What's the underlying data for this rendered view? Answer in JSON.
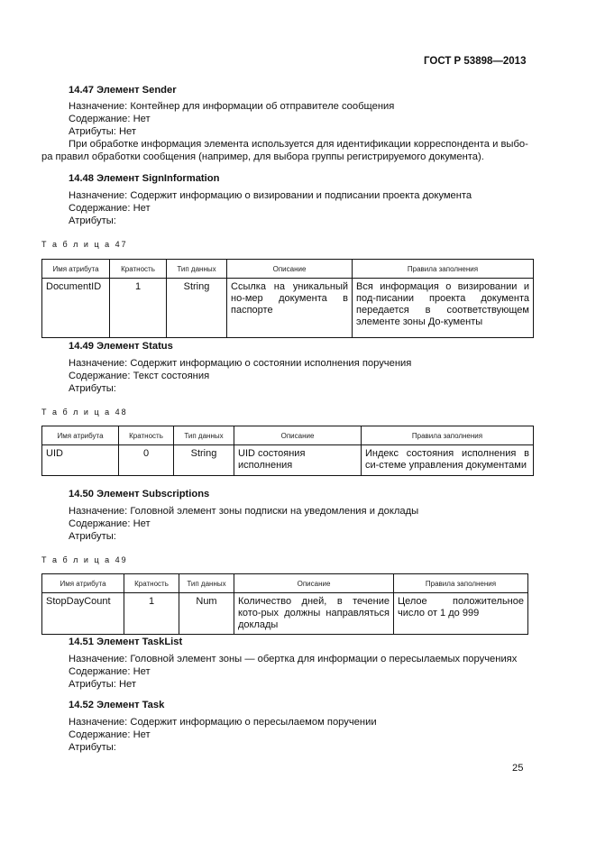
{
  "header": "ГОСТ Р 53898—2013",
  "page_number": "25",
  "columns": [
    "Имя атрибута",
    "Кратность",
    "Тип данных",
    "Описание",
    "Правила заполнения"
  ],
  "s1447": {
    "title": "14.47  Элемент Sender",
    "lines": [
      "Назначение: Контейнер для информации об отправителе сообщения",
      "Содержание: Нет",
      "Атрибуты: Нет",
      "При обработке информация элемента используется для идентификации корреспондента и выбо-",
      "ра правил обработки сообщения (например, для выбора группы регистрируемого документа)."
    ]
  },
  "s1448": {
    "title": "14.48  Элемент SignInformation",
    "lines": [
      "Назначение: Содержит информацию о визировании и подписании проекта документа",
      "Содержание: Нет",
      "Атрибуты:"
    ]
  },
  "t47": {
    "caption": "Т а б л и ц а  47",
    "row": [
      "DocumentID",
      "1",
      "String",
      "Ссылка на уникальный но-мер документа в паспорте",
      "Вся информация о визировании и под-писании проекта документа передается в соответствующем элементе зоны До-кументы"
    ]
  },
  "s1449": {
    "title": "14.49  Элемент Status",
    "lines": [
      "Назначение: Содержит информацию о состоянии исполнения поручения",
      "Содержание: Текст состояния",
      "Атрибуты:"
    ]
  },
  "t48": {
    "caption": "Т а б л и ц а  48",
    "row": [
      "UID",
      "0",
      "String",
      "UID состояния исполнения",
      "Индекс состояния исполнения в си-стеме управления документами"
    ]
  },
  "s1450": {
    "title": "14.50  Элемент Subscriptions",
    "lines": [
      "Назначение: Головной элемент зоны подписки на уведомления и доклады",
      "Содержание: Нет",
      "Атрибуты:"
    ]
  },
  "t49": {
    "caption": "Т а б л и ц а  49",
    "row": [
      "StopDayCount",
      "1",
      "Num",
      "Количество дней, в течение кото-рых должны направляться доклады",
      "Целое положительное число от 1 до 999"
    ]
  },
  "s1451": {
    "title": "14.51  Элемент TaskList",
    "lines": [
      "Назначение: Головной элемент зоны — обертка для информации о пересылаемых поручениях",
      "Содержание: Нет",
      "Атрибуты: Нет"
    ]
  },
  "s1452": {
    "title": "14.52  Элемент Task",
    "lines": [
      "Назначение: Содержит информацию о пересылаемом поручении",
      "Содержание: Нет",
      "Атрибуты:"
    ]
  }
}
